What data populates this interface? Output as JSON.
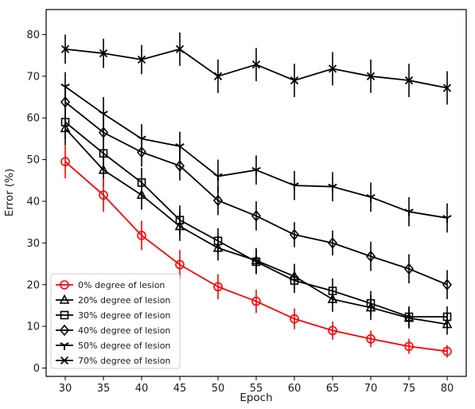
{
  "chart_data": {
    "type": "line",
    "title": "",
    "xlabel": "Epoch",
    "ylabel": "Error (%)",
    "x": [
      30,
      35,
      40,
      45,
      50,
      55,
      60,
      65,
      70,
      75,
      80
    ],
    "xlim": [
      27.5,
      82.5
    ],
    "ylim": [
      -2,
      86
    ],
    "xticks": [
      30,
      35,
      40,
      45,
      50,
      55,
      60,
      65,
      70,
      75,
      80
    ],
    "yticks": [
      0,
      10,
      20,
      30,
      40,
      50,
      60,
      70,
      80
    ],
    "grid": false,
    "legend_position": "lower-left",
    "series": [
      {
        "name": "0% degree of lesion",
        "color": "#ff0000",
        "marker": "circle",
        "values": [
          49.5,
          41.5,
          31.8,
          24.8,
          19.5,
          16.0,
          11.8,
          9.0,
          7.0,
          5.2,
          4.0
        ],
        "errors": [
          4.0,
          4.0,
          3.5,
          3.5,
          3.0,
          2.8,
          2.5,
          2.2,
          2.0,
          1.8,
          1.5
        ]
      },
      {
        "name": "20% degree of lesion",
        "color": "#000000",
        "marker": "triangle",
        "values": [
          57.5,
          47.5,
          41.5,
          34.0,
          28.8,
          25.8,
          22.0,
          16.5,
          14.5,
          12.0,
          10.5
        ],
        "errors": [
          4.0,
          4.0,
          3.5,
          3.5,
          3.0,
          3.0,
          3.0,
          3.0,
          3.0,
          2.5,
          2.5
        ]
      },
      {
        "name": "30% degree of lesion",
        "color": "#000000",
        "marker": "square",
        "values": [
          59.0,
          51.5,
          44.5,
          35.5,
          30.5,
          25.5,
          21.0,
          18.5,
          15.5,
          12.3,
          12.3
        ],
        "errors": [
          4.0,
          4.0,
          3.5,
          3.5,
          3.0,
          3.0,
          3.0,
          3.0,
          3.0,
          2.5,
          2.5
        ]
      },
      {
        "name": "40% degree of lesion",
        "color": "#000000",
        "marker": "diamond",
        "values": [
          63.8,
          56.5,
          51.8,
          48.5,
          40.2,
          36.5,
          32.0,
          30.0,
          26.8,
          23.8,
          20.0
        ],
        "errors": [
          4.0,
          4.0,
          3.5,
          3.5,
          3.5,
          3.5,
          3.0,
          3.0,
          3.5,
          3.5,
          3.5
        ]
      },
      {
        "name": "50% degree of lesion",
        "color": "#000000",
        "marker": "tri_down",
        "values": [
          67.5,
          61.0,
          55.0,
          53.2,
          46.0,
          47.5,
          43.8,
          43.5,
          41.0,
          37.5,
          36.0
        ],
        "errors": [
          3.5,
          4.0,
          3.5,
          3.5,
          4.0,
          3.5,
          3.5,
          3.5,
          3.5,
          3.5,
          3.5
        ]
      },
      {
        "name": "70% degree of lesion",
        "color": "#000000",
        "marker": "x",
        "values": [
          76.5,
          75.5,
          74.0,
          76.5,
          70.0,
          72.8,
          69.0,
          71.8,
          70.0,
          69.0,
          67.2
        ],
        "errors": [
          3.5,
          3.5,
          3.5,
          4.0,
          4.0,
          4.0,
          4.0,
          4.0,
          4.0,
          4.0,
          4.0
        ]
      }
    ]
  }
}
